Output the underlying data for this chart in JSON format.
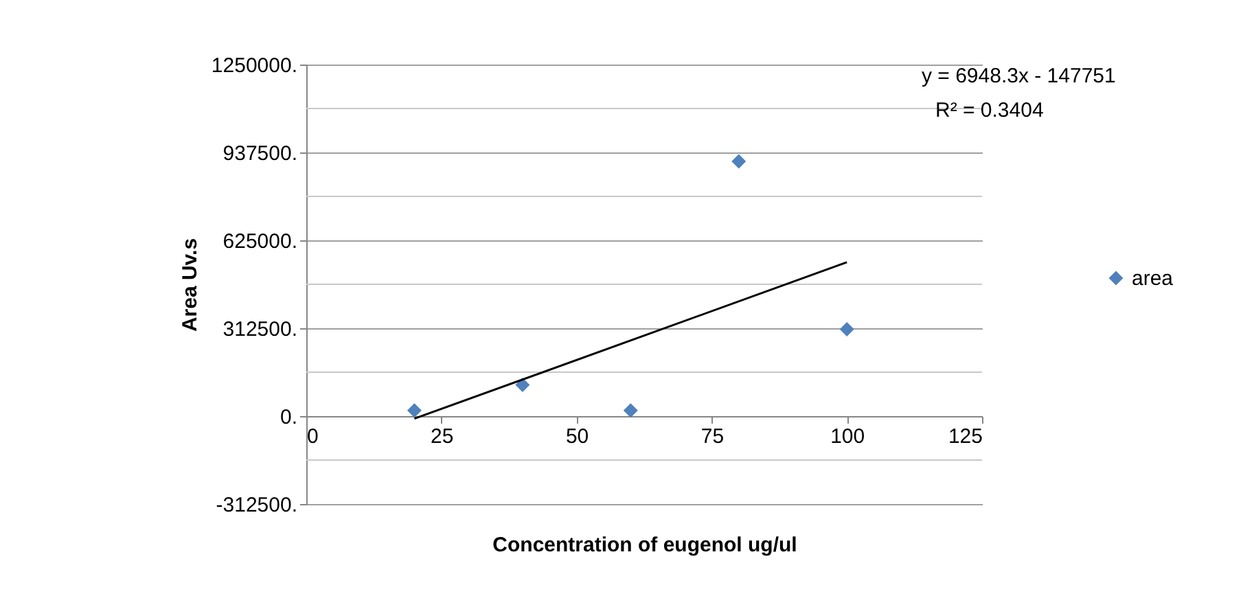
{
  "chart_data": {
    "type": "scatter",
    "xlabel": "Concentration of eugenol ug/ul",
    "ylabel": "Area Uv.s",
    "x": [
      20,
      40,
      60,
      80,
      100
    ],
    "series": [
      {
        "name": "area",
        "color": "#4f81bd",
        "values": [
          20000,
          111000,
          20000,
          906000,
          309000
        ]
      },
      {
        "type": "line",
        "color": "#000000",
        "marker": "none",
        "x": [
          20,
          100
        ],
        "values": [
          -9000,
          547000
        ]
      }
    ],
    "xlim": [
      0,
      125
    ],
    "xticks": [
      0,
      25,
      50,
      75,
      100,
      125
    ],
    "ylim": [
      -312500,
      1250000
    ],
    "yticks": [
      {
        "value": -312500,
        "label": "-312500."
      },
      {
        "value": -156250,
        "label": null
      },
      {
        "value": 0,
        "label": "0."
      },
      {
        "value": 156250,
        "label": null
      },
      {
        "value": 312500,
        "label": "312500."
      },
      {
        "value": 468750,
        "label": null
      },
      {
        "value": 625000,
        "label": "625000."
      },
      {
        "value": 781250,
        "label": null
      },
      {
        "value": 937500,
        "label": "937500."
      },
      {
        "value": 1093750,
        "label": null
      },
      {
        "value": 1250000,
        "label": "1250000."
      }
    ],
    "annotations": [
      "y = 6948.3x - 147751",
      "R² = 0.3404"
    ],
    "grid": "y",
    "legend": "right",
    "marker": "diamond",
    "line_style": "solid"
  }
}
